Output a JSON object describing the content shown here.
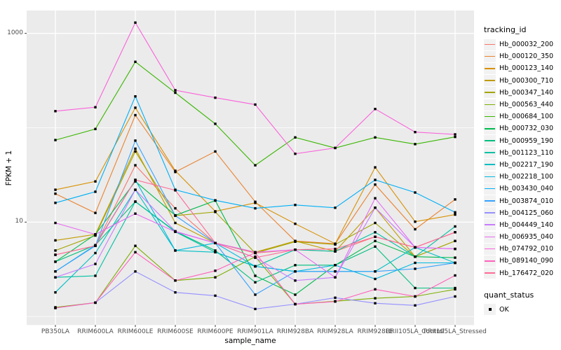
{
  "chart_data": {
    "type": "line",
    "title": "",
    "xlabel": "sample_name",
    "ylabel": "FPKM + 1",
    "y_scale": "log10",
    "y_breaks": [
      10,
      1000
    ],
    "y_break_labels": [
      "10",
      "1000"
    ],
    "y_minor_breaks": [
      1,
      100
    ],
    "grid": true,
    "legend_position": "right",
    "categories": [
      "PB350LA",
      "RRIM600LA",
      "RRIM600LE",
      "RRIM600SE",
      "RRIM600PE",
      "RRIM901LA",
      "RRIM928BA",
      "RRIM928LA",
      "RRIM928LE",
      "RRII105LA_Control",
      "RRII105LA_Stressed"
    ],
    "series": [
      {
        "name": "Hb_000032_200",
        "color": "#F8766D",
        "values": [
          4.5,
          5.6,
          40,
          14,
          6.0,
          4.7,
          5.1,
          4.9,
          7.0,
          5.4,
          7.8
        ]
      },
      {
        "name": "Hb_000120_350",
        "color": "#EA8331",
        "values": [
          20,
          12.5,
          136,
          34,
          56,
          16.4,
          6.3,
          5.9,
          25,
          8.4,
          17.4
        ]
      },
      {
        "name": "Hb_000123_140",
        "color": "#D89000",
        "values": [
          22,
          27,
          163,
          35,
          13,
          16,
          9.6,
          5.9,
          38,
          10.1,
          12
        ]
      },
      {
        "name": "Hb_000300_710",
        "color": "#C09B00",
        "values": [
          6.4,
          7.4,
          60,
          9.8,
          6.0,
          4.8,
          6.3,
          4.9,
          14.2,
          4.3,
          6.3
        ]
      },
      {
        "name": "Hb_000347_140",
        "color": "#A3A500",
        "values": [
          5.0,
          7.2,
          56,
          11.7,
          12.8,
          4.7,
          6.2,
          5.8,
          9.8,
          4.3,
          6.3
        ]
      },
      {
        "name": "Hb_000563_440",
        "color": "#7CAE00",
        "values": [
          1.25,
          1.4,
          5.6,
          2.4,
          2.6,
          4.3,
          1.35,
          1.45,
          1.56,
          1.63,
          1.94
        ]
      },
      {
        "name": "Hb_000684_100",
        "color": "#39B600",
        "values": [
          74,
          97,
          500,
          235,
          110,
          40,
          79,
          61,
          79,
          67,
          80
        ]
      },
      {
        "name": "Hb_000732_030",
        "color": "#00BB4E",
        "values": [
          3.8,
          7.4,
          27,
          11.8,
          16.9,
          2.7,
          1.7,
          3.5,
          6.3,
          4.3,
          4.2
        ]
      },
      {
        "name": "Hb_000959_190",
        "color": "#00BF7D",
        "values": [
          3.8,
          5.7,
          16.5,
          8.0,
          5.0,
          2.3,
          3.5,
          3.5,
          5.5,
          2.0,
          2.0
        ]
      },
      {
        "name": "Hb_001123_110",
        "color": "#00C1A3",
        "values": [
          2.6,
          2.7,
          16.5,
          7.9,
          4.8,
          3.4,
          5.1,
          4.9,
          7.8,
          4.3,
          9.0
        ]
      },
      {
        "name": "Hb_002217_190",
        "color": "#00BFC4",
        "values": [
          1.8,
          4.7,
          22,
          5.0,
          4.8,
          3.4,
          3.0,
          3.0,
          3.0,
          5.4,
          3.7
        ]
      },
      {
        "name": "Hb_002218_100",
        "color": "#00BAE0",
        "values": [
          3.0,
          5.7,
          28,
          5.0,
          6.0,
          3.4,
          3.0,
          3.5,
          2.5,
          3.7,
          3.7
        ]
      },
      {
        "name": "Hb_003430_040",
        "color": "#00B0F6",
        "values": [
          16,
          21,
          215,
          22,
          17,
          14,
          15.2,
          14.2,
          28,
          20.6,
          12.7
        ]
      },
      {
        "name": "Hb_003874_010",
        "color": "#35A2FF",
        "values": [
          3.0,
          5.6,
          73,
          11.7,
          6.0,
          1.7,
          3.0,
          3.0,
          3.0,
          3.2,
          3.7
        ]
      },
      {
        "name": "Hb_004125_060",
        "color": "#9590FF",
        "values": [
          1.23,
          1.4,
          3.0,
          1.8,
          1.66,
          1.2,
          1.35,
          1.58,
          1.38,
          1.31,
          1.63
        ]
      },
      {
        "name": "Hb_004449_140",
        "color": "#C77CFF",
        "values": [
          2.6,
          3.6,
          22,
          8.0,
          6.0,
          4.2,
          2.4,
          2.6,
          14.2,
          5.4,
          5.2
        ]
      },
      {
        "name": "Hb_006935_040",
        "color": "#E76BF3",
        "values": [
          9.8,
          7.4,
          12.3,
          7.9,
          6.0,
          4.8,
          5.1,
          2.6,
          17.9,
          5.4,
          5.2
        ]
      },
      {
        "name": "Hb_074792_010",
        "color": "#FA62DB",
        "values": [
          150,
          165,
          1300,
          250,
          208,
          176,
          53,
          61,
          158,
          90,
          85
        ]
      },
      {
        "name": "Hb_089140_090",
        "color": "#FF62BC",
        "values": [
          1.23,
          1.4,
          4.8,
          2.4,
          3.05,
          4.75,
          1.35,
          1.44,
          1.94,
          1.63,
          2.72
        ]
      },
      {
        "name": "Hb_176472_020",
        "color": "#FF6A98",
        "values": [
          4.5,
          5.6,
          28,
          21.7,
          6.0,
          4.2,
          5.1,
          5.2,
          7.0,
          5.4,
          7.8
        ]
      }
    ]
  },
  "axes": {
    "x_title": "sample_name",
    "y_title": "FPKM + 1"
  },
  "legend": {
    "title": "tracking_id",
    "quant_title": "quant_status",
    "quant_items": [
      {
        "label": "OK"
      }
    ]
  },
  "colors": {
    "background": "#FFFFFF",
    "panel_bg": "#EBEBEB",
    "grid": "#FFFFFF",
    "tick": "#333333",
    "tick_label": "#4D4D4D",
    "point": "#000000",
    "legend_key_bg": "#F2F2F2"
  }
}
